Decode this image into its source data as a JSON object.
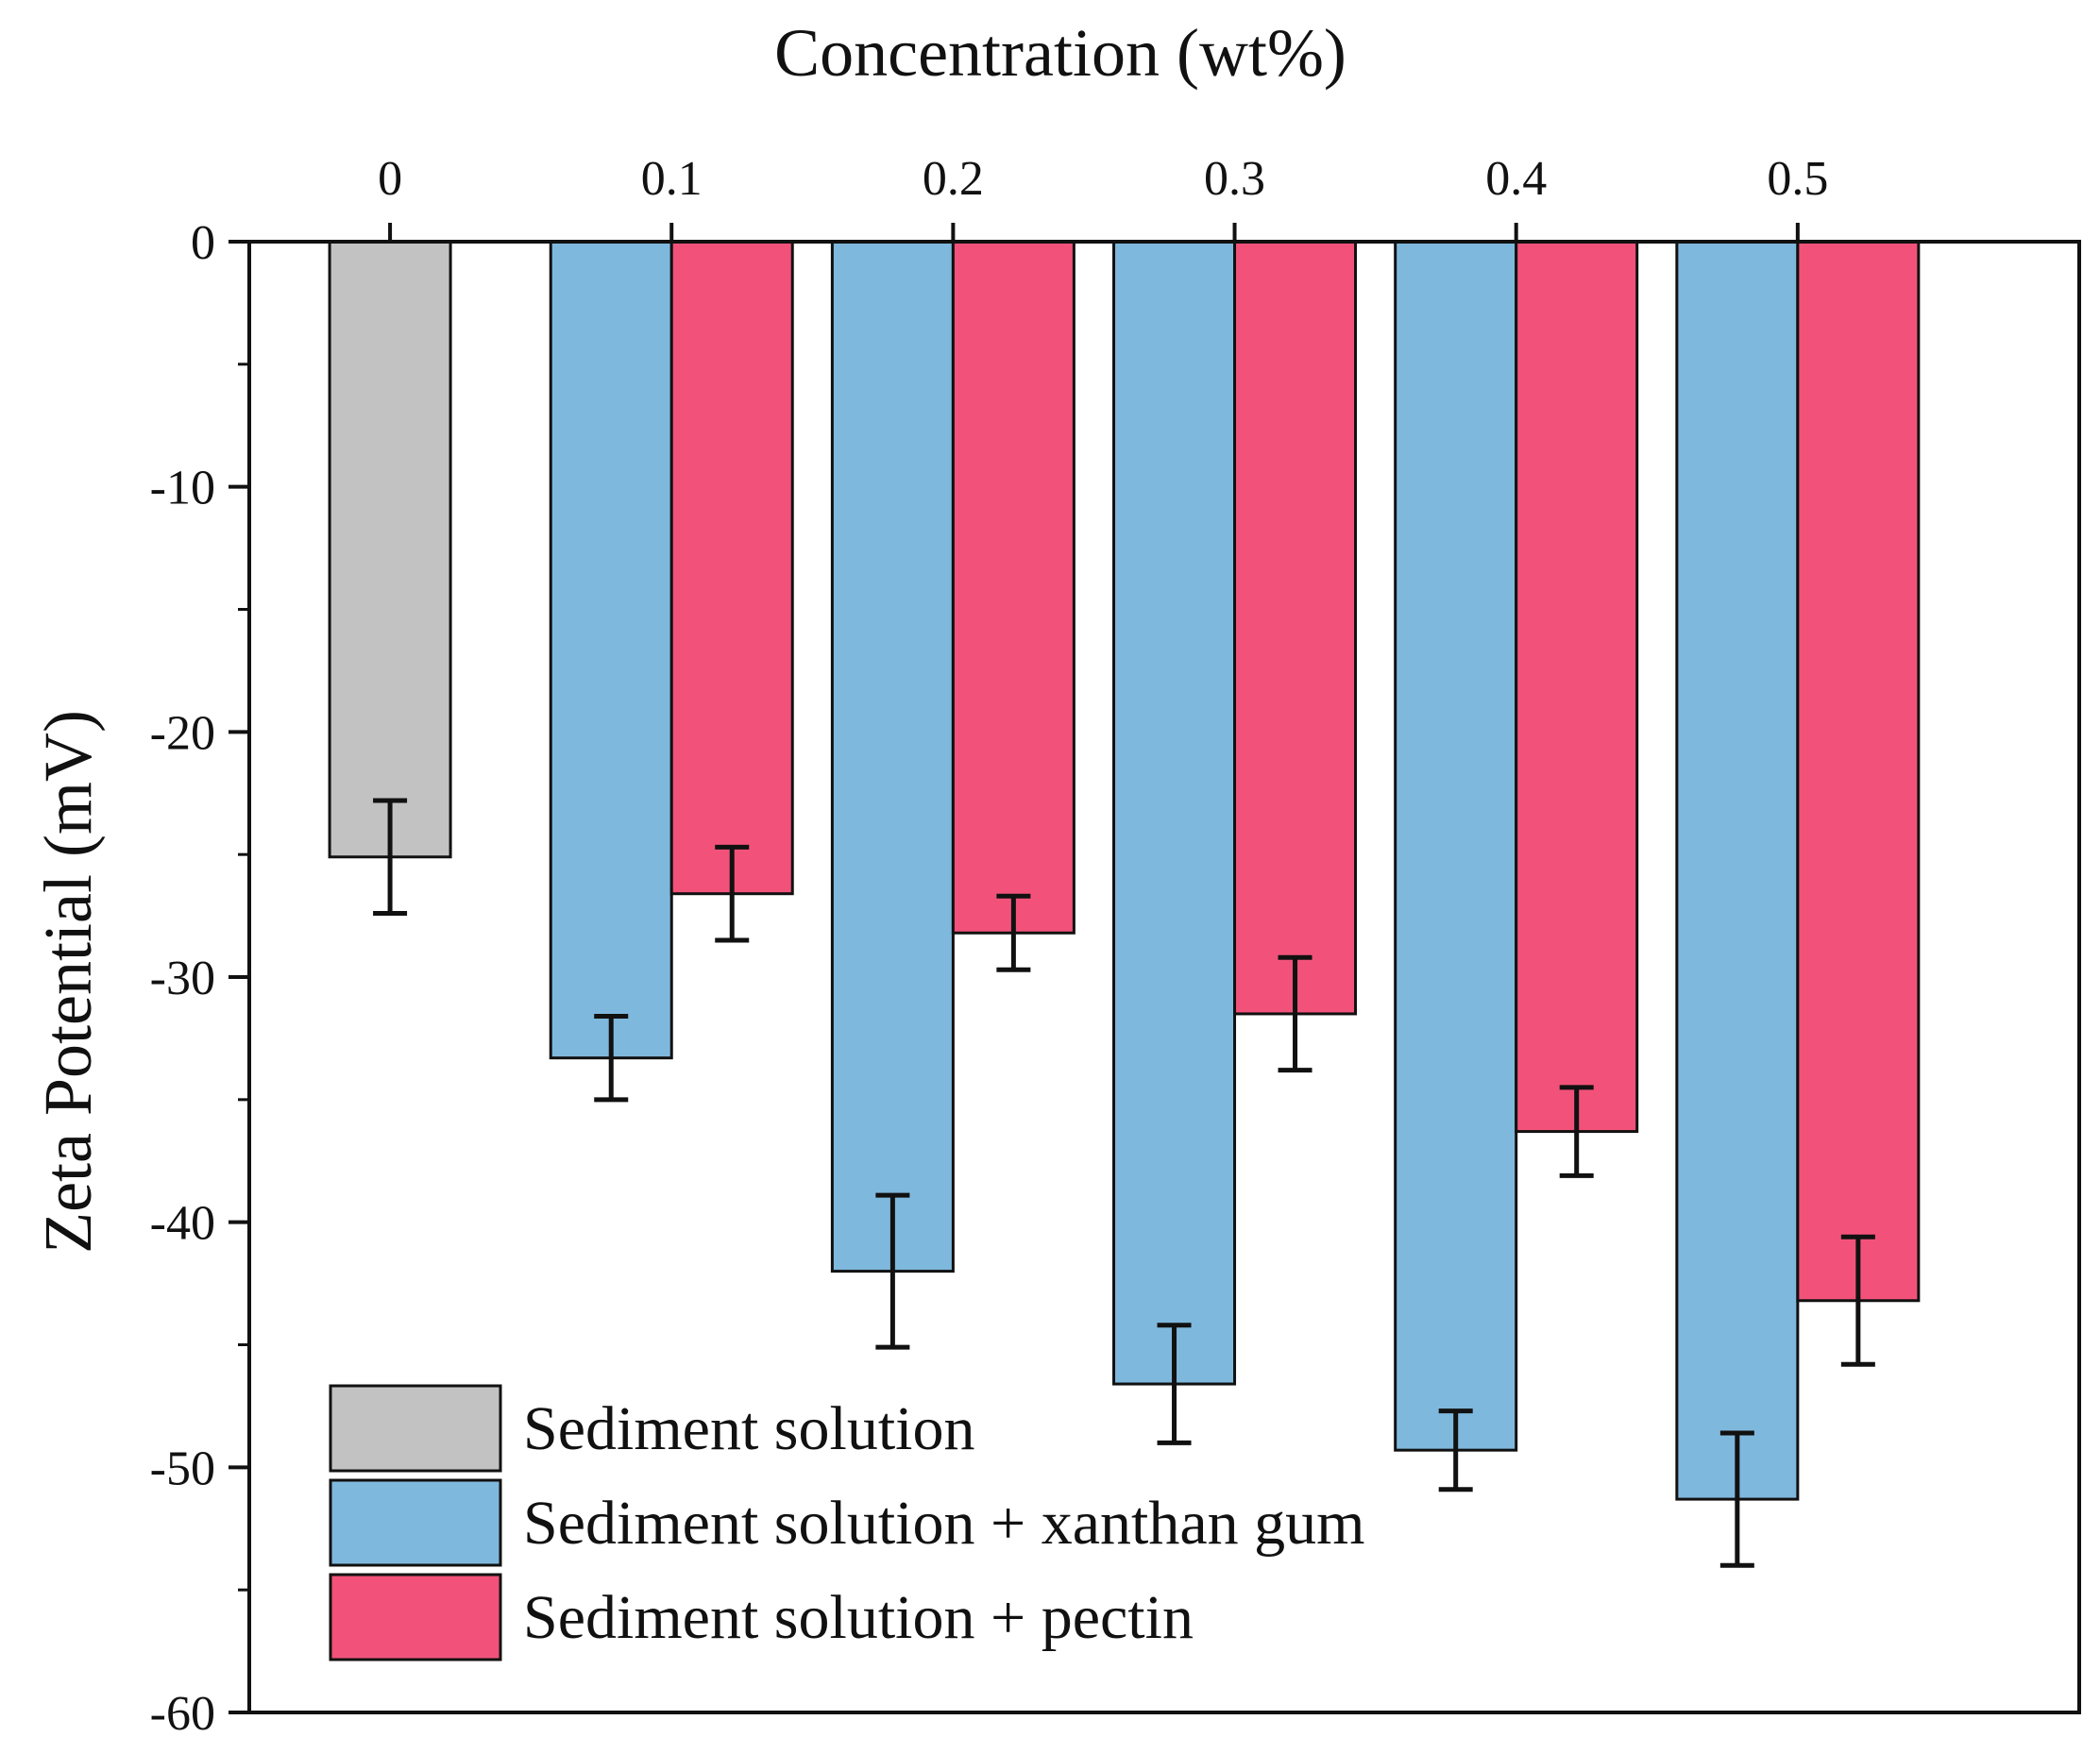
{
  "chart_data": {
    "type": "bar",
    "xlabel": "Concentration (wt%)",
    "ylabel": "Zeta Potential (mV)",
    "ylim": [
      -60,
      0
    ],
    "yticks": [
      0,
      -10,
      -20,
      -30,
      -40,
      -50,
      -60
    ],
    "x_axis_position": "top",
    "categories": [
      "0",
      "0.1",
      "0.2",
      "0.3",
      "0.4",
      "0.5"
    ],
    "series": [
      {
        "name": "Sediment solution",
        "color": "#c2c2c2",
        "values": [
          -25.1,
          null,
          null,
          null,
          null,
          null
        ],
        "errors": [
          2.3,
          null,
          null,
          null,
          null,
          null
        ]
      },
      {
        "name": "Sediment solution + xanthan gum",
        "color": "#7fb8dd",
        "values": [
          null,
          -33.3,
          -42.0,
          -46.6,
          -49.3,
          -51.3
        ],
        "errors": [
          null,
          1.7,
          3.1,
          2.4,
          1.6,
          2.7
        ]
      },
      {
        "name": "Sediment solution + pectin",
        "color": "#f2527a",
        "values": [
          null,
          -26.6,
          -28.2,
          -31.5,
          -36.3,
          -43.2
        ],
        "errors": [
          null,
          1.9,
          1.5,
          2.3,
          1.8,
          2.6
        ]
      }
    ],
    "grid": false,
    "legend_position": "bottom-left"
  }
}
